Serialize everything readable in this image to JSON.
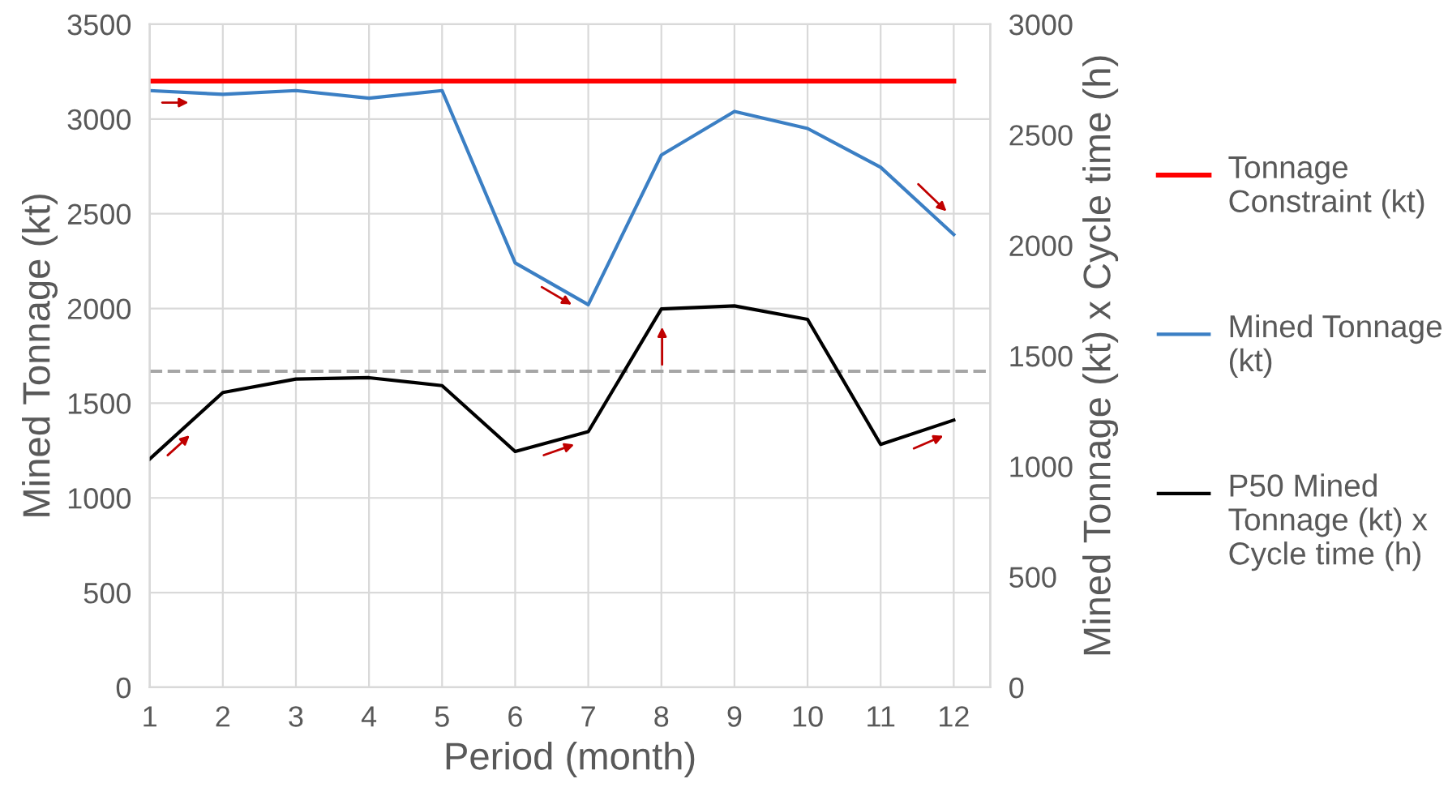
{
  "chart_data": {
    "type": "line",
    "xlabel": "Period (month)",
    "ylabel": "Mined Tonnage (kt)",
    "y2label": "Mined Tonnage (kt) x Cycle time (h)",
    "x": [
      1,
      2,
      3,
      4,
      5,
      6,
      7,
      8,
      9,
      10,
      11,
      12
    ],
    "series": [
      {
        "name": "Tonnage Constraint (kt)",
        "color": "#ff0000",
        "values": [
          3200,
          3200,
          3200,
          3200,
          3200,
          3200,
          3200,
          3200,
          3200,
          3200,
          3200,
          3200
        ]
      },
      {
        "name": "Mined Tonnage (kt)",
        "color": "#3b7fc4",
        "values": [
          3150,
          3130,
          3150,
          3110,
          3150,
          2240,
          2020,
          2810,
          3040,
          2950,
          2745,
          2390
        ]
      },
      {
        "name": "P50 Mined Tonnage (kt) x Cycle time (h)",
        "color": "#000000",
        "axis": "y2",
        "values": [
          1033,
          1334,
          1395,
          1401,
          1365,
          1067,
          1157,
          1712,
          1726,
          1665,
          1099,
          1209
        ]
      }
    ],
    "ref_lines": [
      {
        "axis": "y2",
        "value": 1430,
        "color": "#a6a6a6",
        "line_style": "dashed"
      }
    ],
    "xlim": [
      1,
      12.5
    ],
    "xticks": [
      1,
      2,
      3,
      4,
      5,
      6,
      7,
      8,
      9,
      10,
      11,
      12
    ],
    "ylim": [
      0,
      3500
    ],
    "yticks": [
      0,
      500,
      1000,
      1500,
      2000,
      2500,
      3000,
      3500
    ],
    "y2lim": [
      0,
      3000
    ],
    "y2ticks": [
      0,
      500,
      1000,
      1500,
      2000,
      2500,
      3000
    ],
    "grid": true,
    "legend": "right",
    "marker": "none",
    "line_style": "solid"
  }
}
